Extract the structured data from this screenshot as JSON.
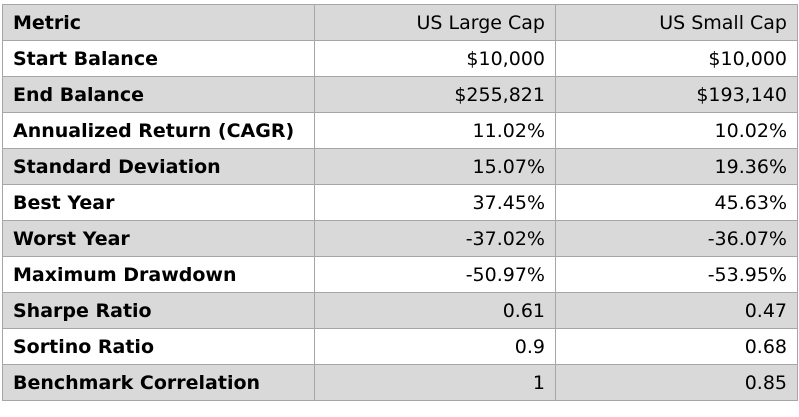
{
  "table": {
    "headers": [
      "Metric",
      "US Large Cap",
      "US Small Cap"
    ],
    "rows": [
      {
        "metric": "Start Balance",
        "us_large_cap": "$10,000",
        "us_small_cap": "$10,000"
      },
      {
        "metric": "End Balance",
        "us_large_cap": "$255,821",
        "us_small_cap": "$193,140"
      },
      {
        "metric": "Annualized Return (CAGR)",
        "us_large_cap": "11.02%",
        "us_small_cap": "10.02%"
      },
      {
        "metric": "Standard Deviation",
        "us_large_cap": "15.07%",
        "us_small_cap": "19.36%"
      },
      {
        "metric": "Best Year",
        "us_large_cap": "37.45%",
        "us_small_cap": "45.63%"
      },
      {
        "metric": "Worst Year",
        "us_large_cap": "-37.02%",
        "us_small_cap": "-36.07%"
      },
      {
        "metric": "Maximum Drawdown",
        "us_large_cap": "-50.97%",
        "us_small_cap": "-53.95%"
      },
      {
        "metric": "Sharpe Ratio",
        "us_large_cap": "0.61",
        "us_small_cap": "0.47"
      },
      {
        "metric": "Sortino Ratio",
        "us_large_cap": "0.9",
        "us_small_cap": "0.68"
      },
      {
        "metric": "Benchmark Correlation",
        "us_large_cap": "1",
        "us_small_cap": "0.85"
      }
    ]
  },
  "colors": {
    "shaded_row": "#d9d9d9",
    "plain_row": "#ffffff",
    "border": "#a6a6a6"
  }
}
